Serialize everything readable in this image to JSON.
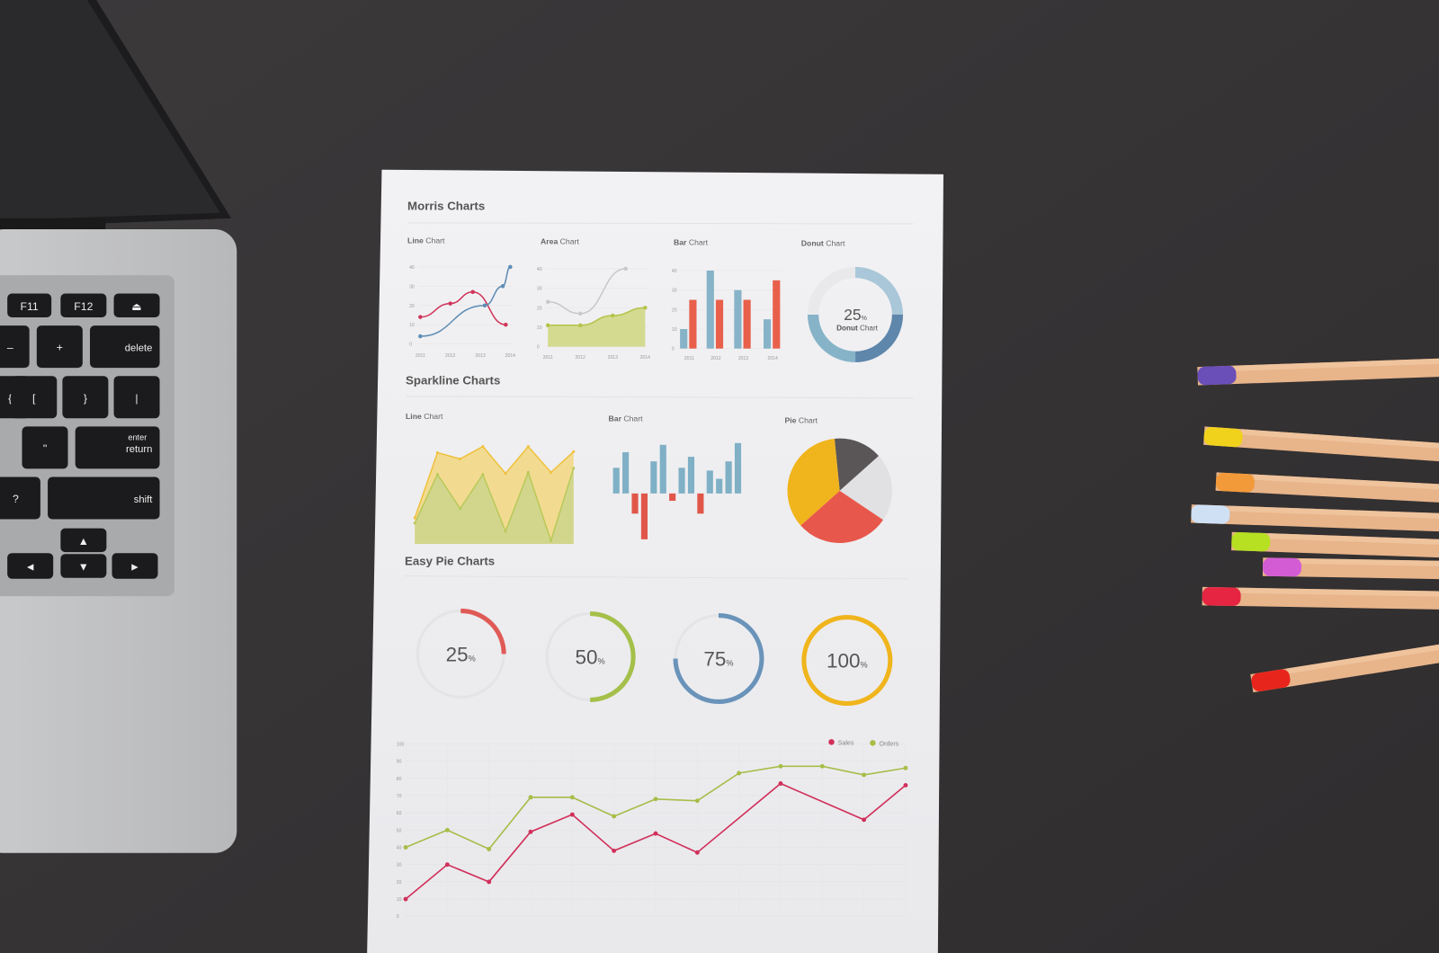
{
  "paper": {
    "morris_title": "Morris Charts",
    "sparkline_title": "Sparkline Charts",
    "easy_pie_title": "Easy Pie Charts",
    "morris_line": {
      "bold": "Line",
      "rest": " Chart"
    },
    "morris_area": {
      "bold": "Area",
      "rest": " Chart"
    },
    "morris_bar": {
      "bold": "Bar",
      "rest": " Chart"
    },
    "morris_donut": {
      "bold": "Donut",
      "rest": " Chart"
    },
    "spark_line": {
      "bold": "Line",
      "rest": " Chart"
    },
    "spark_bar": {
      "bold": "Bar",
      "rest": " Chart"
    },
    "spark_pie": {
      "bold": "Pie",
      "rest": " Chart"
    }
  },
  "chart_data": [
    {
      "id": "morris-line",
      "type": "line",
      "x_ticks": [
        "2011",
        "2012",
        "2013",
        "2014"
      ],
      "y_ticks": [
        0,
        10,
        20,
        30,
        40
      ],
      "ylim": [
        0,
        40
      ],
      "series": [
        {
          "color": "#d0345a",
          "points": [
            [
              2011,
              14
            ],
            [
              2012,
              21
            ],
            [
              2012.75,
              27
            ],
            [
              2013.85,
              10
            ]
          ]
        },
        {
          "color": "#5f8db5",
          "points": [
            [
              2011,
              4
            ],
            [
              2013.15,
              20
            ],
            [
              2013.75,
              30
            ],
            [
              2014,
              40
            ]
          ]
        }
      ]
    },
    {
      "id": "morris-area",
      "type": "area",
      "x_ticks": [
        "2011",
        "2012",
        "2013",
        "2014"
      ],
      "y_ticks": [
        0,
        10,
        20,
        30,
        40
      ],
      "ylim": [
        0,
        40
      ],
      "series": [
        {
          "color": "#c8c8c8",
          "points": [
            [
              2011,
              23
            ],
            [
              2012,
              17
            ],
            [
              2013.4,
              40
            ]
          ]
        },
        {
          "color": "#b5c34a",
          "fill": "#cfd67e",
          "points": [
            [
              2011,
              11
            ],
            [
              2012,
              11
            ],
            [
              2013,
              16
            ],
            [
              2014,
              20
            ]
          ]
        }
      ]
    },
    {
      "id": "morris-bar",
      "type": "bar",
      "categories": [
        "2011",
        "2012",
        "2013",
        "2014"
      ],
      "y_ticks": [
        0,
        10,
        20,
        30,
        40
      ],
      "ylim": [
        0,
        40
      ],
      "series": [
        {
          "color": "#86b3c8",
          "values": [
            10,
            40,
            30,
            15
          ]
        },
        {
          "color": "#e8604c",
          "values": [
            25,
            25,
            25,
            35
          ]
        }
      ]
    },
    {
      "id": "morris-donut",
      "type": "pie",
      "center_value": "25",
      "unit": "%",
      "center_label_bold": "Donut",
      "center_label_rest": " Chart",
      "slices": [
        {
          "value": 25,
          "color": "#a9c7d8"
        },
        {
          "value": 25,
          "color": "#5f86ab"
        },
        {
          "value": 25,
          "color": "#86b3c8"
        },
        {
          "value": 25,
          "color": "#e9e9eb"
        }
      ]
    },
    {
      "id": "spark-line",
      "type": "area",
      "series": [
        {
          "color": "#efc13c",
          "fill": "#f3d679",
          "values": [
            25,
            88,
            82,
            94,
            68,
            94,
            69,
            89
          ]
        },
        {
          "color": "#b8c95a",
          "fill": "#c9d48c",
          "values": [
            20,
            67,
            34,
            67,
            12,
            69,
            3,
            73
          ]
        }
      ]
    },
    {
      "id": "spark-bar",
      "type": "bar",
      "positive_color": "#7fb0c6",
      "negative_color": "#e0574a",
      "values": [
        28,
        45,
        -22,
        -50,
        35,
        53,
        -8,
        28,
        40,
        -22,
        25,
        16,
        35,
        55
      ]
    },
    {
      "id": "spark-pie",
      "type": "pie",
      "slices": [
        {
          "value": 15,
          "color": "#5a5658"
        },
        {
          "value": 21,
          "color": "#e1e1e3"
        },
        {
          "value": 29,
          "color": "#e8574b"
        },
        {
          "value": 35,
          "color": "#f0b41c"
        }
      ]
    },
    {
      "id": "easy-pies",
      "type": "pie",
      "unit": "%",
      "items": [
        {
          "value": 25,
          "color": "#e05a55"
        },
        {
          "value": 50,
          "color": "#a5c04a"
        },
        {
          "value": 75,
          "color": "#6a93ba"
        },
        {
          "value": 100,
          "color": "#f0b51c"
        }
      ]
    },
    {
      "id": "sales-orders",
      "type": "line",
      "y_ticks": [
        0,
        10,
        20,
        30,
        40,
        50,
        60,
        70,
        80,
        90,
        100
      ],
      "ylim": [
        0,
        100
      ],
      "grid": true,
      "legend": "top-right",
      "series": [
        {
          "name": "Sales",
          "color": "#d1305a",
          "values": [
            10,
            30,
            20,
            49,
            59,
            38,
            48,
            37,
            null,
            77,
            null,
            56,
            76
          ]
        },
        {
          "name": "Orders",
          "color": "#a6bd48",
          "values": [
            40,
            50,
            39,
            69,
            69,
            58,
            68,
            67,
            83,
            87,
            87,
            82,
            86
          ]
        }
      ]
    }
  ],
  "laptop": {
    "keys": {
      "f11": "F11",
      "f12": "F12",
      "delete": "delete",
      "enter": "enter",
      "return": "return",
      "shift": "shift",
      "minus": "–",
      "plus": "+",
      "equals": "=",
      "brace_open": "{",
      "bracket_open": "[",
      "brace_close": "}",
      "bracket_close": "]",
      "pipe": "|",
      "backslash": "\\",
      "quote": "\"",
      "apostrophe": ",",
      "question": "?",
      "slash": "/",
      "up": "▲",
      "down": "▼",
      "left": "◄",
      "right": "►",
      "eject": "⏏"
    }
  },
  "pencils": [
    {
      "tip": "#6a4fb8"
    },
    {
      "tip": "#f0d21c"
    },
    {
      "tip": "#f29a3a"
    },
    {
      "tip": "#cfe0f5"
    },
    {
      "tip": "#b6e021"
    },
    {
      "tip": "#d35cd4"
    },
    {
      "tip": "#e52541"
    },
    {
      "tip": "#e8251d"
    }
  ]
}
